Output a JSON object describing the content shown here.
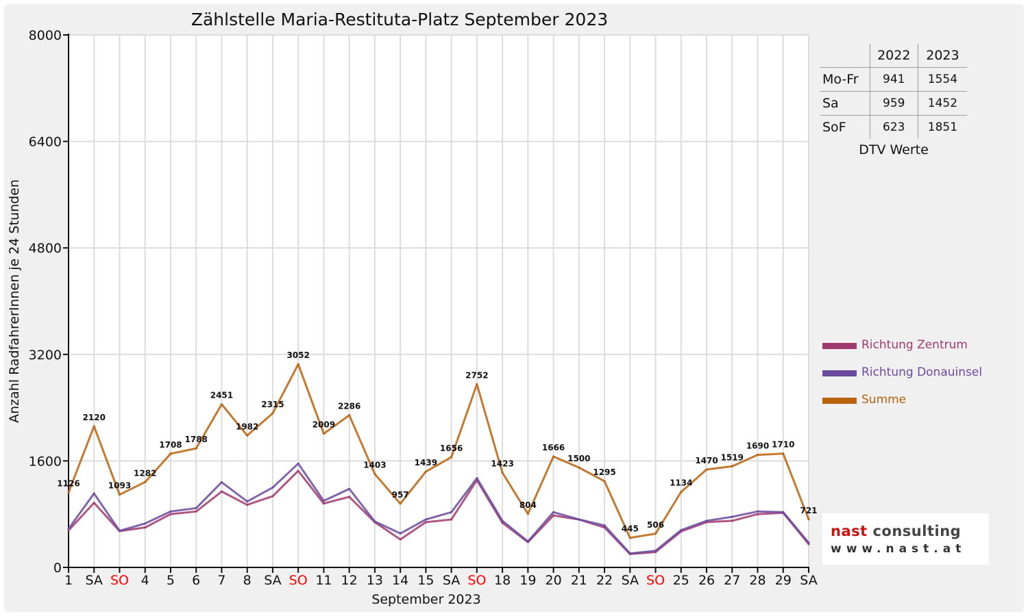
{
  "chart_data": {
    "type": "line",
    "title": "Zählstelle Maria-Restituta-Platz September 2023",
    "ylabel": "Anzahl RadfahrerInnen je 24 Stunden",
    "xlabel": "September 2023",
    "ylim": [
      0,
      8000
    ],
    "yticks": [
      0,
      1600,
      3200,
      4800,
      6400,
      8000
    ],
    "grid": true,
    "legend_position": "right",
    "categories": [
      "1",
      "SA",
      "SO",
      "4",
      "5",
      "6",
      "7",
      "8",
      "SA",
      "SO",
      "11",
      "12",
      "13",
      "14",
      "15",
      "SA",
      "SO",
      "18",
      "19",
      "20",
      "21",
      "22",
      "SA",
      "SO",
      "25",
      "26",
      "27",
      "28",
      "29",
      "SA"
    ],
    "category_colors": [
      "#111111",
      "#111111",
      "#ff0000",
      "#111111",
      "#111111",
      "#111111",
      "#111111",
      "#111111",
      "#111111",
      "#ff0000",
      "#111111",
      "#111111",
      "#111111",
      "#111111",
      "#111111",
      "#111111",
      "#ff0000",
      "#111111",
      "#111111",
      "#111111",
      "#111111",
      "#111111",
      "#111111",
      "#ff0000",
      "#111111",
      "#111111",
      "#111111",
      "#111111",
      "#111111",
      "#111111"
    ],
    "series": [
      {
        "name": "Richtung Zentrum",
        "color": "#a03a6e",
        "values": [
          555,
          970,
          545,
          600,
          800,
          840,
          1140,
          940,
          1070,
          1450,
          960,
          1060,
          680,
          420,
          680,
          720,
          1310,
          670,
          380,
          780,
          720,
          600,
          200,
          230,
          540,
          680,
          700,
          800,
          820,
          350
        ]
      },
      {
        "name": "Richtung Donauinsel",
        "color": "#6a4a9c",
        "values": [
          580,
          1110,
          550,
          660,
          840,
          890,
          1280,
          990,
          1200,
          1560,
          1000,
          1180,
          690,
          510,
          720,
          830,
          1340,
          700,
          390,
          830,
          720,
          630,
          210,
          250,
          560,
          700,
          760,
          840,
          830,
          370
        ]
      },
      {
        "name": "Summe",
        "color": "#b8620c",
        "values": [
          1126,
          2120,
          1093,
          1282,
          1708,
          1788,
          2451,
          1982,
          2315,
          3052,
          2009,
          2286,
          1403,
          957,
          1439,
          1656,
          2752,
          1423,
          804,
          1666,
          1500,
          1295,
          445,
          506,
          1134,
          1470,
          1519,
          1690,
          1710,
          721
        ],
        "labels": [
          "1126",
          "2120",
          "1093",
          "1282",
          "1708",
          "1788",
          "2451",
          "1982",
          "2315",
          "3052",
          "2009",
          "2286",
          "1403",
          "957",
          "1439",
          "1656",
          "2752",
          "1423",
          "804",
          "1666",
          "1500",
          "1295",
          "445",
          "506",
          "1134",
          "1470",
          "1519",
          "1690",
          "1710",
          "721"
        ]
      }
    ]
  },
  "dtv": {
    "headers": [
      "",
      "2022",
      "2023"
    ],
    "rows": [
      {
        "label": "Mo-Fr",
        "v2022": "941",
        "v2023": "1554"
      },
      {
        "label": "Sa",
        "v2022": "959",
        "v2023": "1452"
      },
      {
        "label": "SoF",
        "v2022": "623",
        "v2023": "1851"
      }
    ],
    "caption": "DTV Werte"
  },
  "logo": {
    "brand_part1": "nast",
    "brand_part2": "consulting",
    "url": "www.nast.at",
    "accent_color": "#cc1111"
  }
}
